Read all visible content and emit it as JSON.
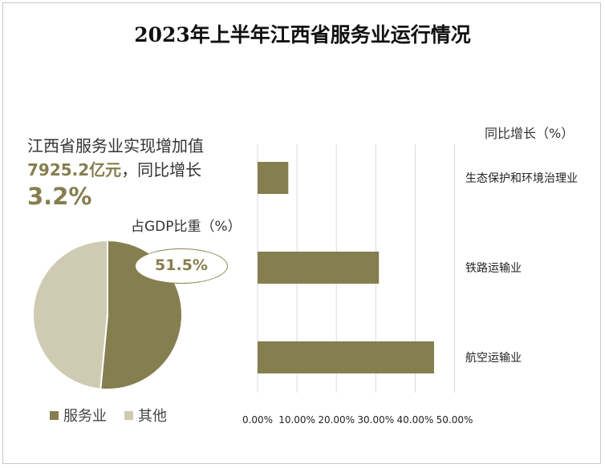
{
  "title": "2023年上半年江西省服务业运行情况",
  "summary": {
    "line1": "江西省服务业实现增加值",
    "value": "7925.2亿元",
    "line2_suffix": "，同比增长",
    "growth": "3.2%"
  },
  "colors": {
    "primary": "#857e4f",
    "secondary": "#cfcbb3"
  },
  "chart_data": [
    {
      "type": "pie",
      "title": "占GDP比重（%）",
      "labels": [
        "服务业",
        "其他"
      ],
      "values": [
        51.5,
        48.5
      ],
      "data_label": "51.5%",
      "legend": "bottom-left"
    },
    {
      "type": "bar",
      "orientation": "horizontal",
      "title": "同比增长（%）",
      "categories": [
        "生态保护和环境治理业",
        "铁路运输业",
        "航空运输业"
      ],
      "values": [
        7.8,
        30.8,
        44.8
      ],
      "xlim": [
        0,
        50
      ],
      "tick_labels": [
        "0.00%",
        "10.00%",
        "20.00%",
        "30.00%",
        "40.00%",
        "50.00%"
      ],
      "grid": true
    }
  ]
}
